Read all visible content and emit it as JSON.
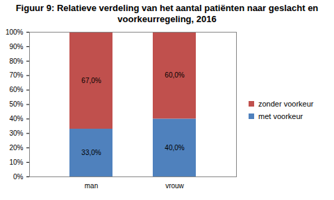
{
  "chart_data": {
    "type": "bar",
    "title": "Figuur 9: Relatieve verdeling van het aantal patiënten naar geslacht en voorkeurregeling, 2016",
    "categories": [
      "man",
      "vrouw"
    ],
    "series": [
      {
        "name": "met voorkeur",
        "color": "#4F81BD",
        "values": [
          33.0,
          40.0
        ],
        "value_labels": [
          "33,0%",
          "40,0%"
        ]
      },
      {
        "name": "zonder voorkeur",
        "color": "#C0504D",
        "values": [
          67.0,
          60.0
        ],
        "value_labels": [
          "67,0%",
          "60,0%"
        ]
      }
    ],
    "stacked": true,
    "data_labels": true,
    "legend": "right",
    "grid": false,
    "ylim": [
      0,
      100
    ],
    "yticks": [
      {
        "value": 0,
        "label": "0%"
      },
      {
        "value": 10,
        "label": "10%"
      },
      {
        "value": 20,
        "label": "20%"
      },
      {
        "value": 30,
        "label": "30%"
      },
      {
        "value": 40,
        "label": "40%"
      },
      {
        "value": 50,
        "label": "50%"
      },
      {
        "value": 60,
        "label": "60%"
      },
      {
        "value": 70,
        "label": "70%"
      },
      {
        "value": 80,
        "label": "80%"
      },
      {
        "value": 90,
        "label": "90%"
      },
      {
        "value": 100,
        "label": "100%"
      }
    ]
  }
}
